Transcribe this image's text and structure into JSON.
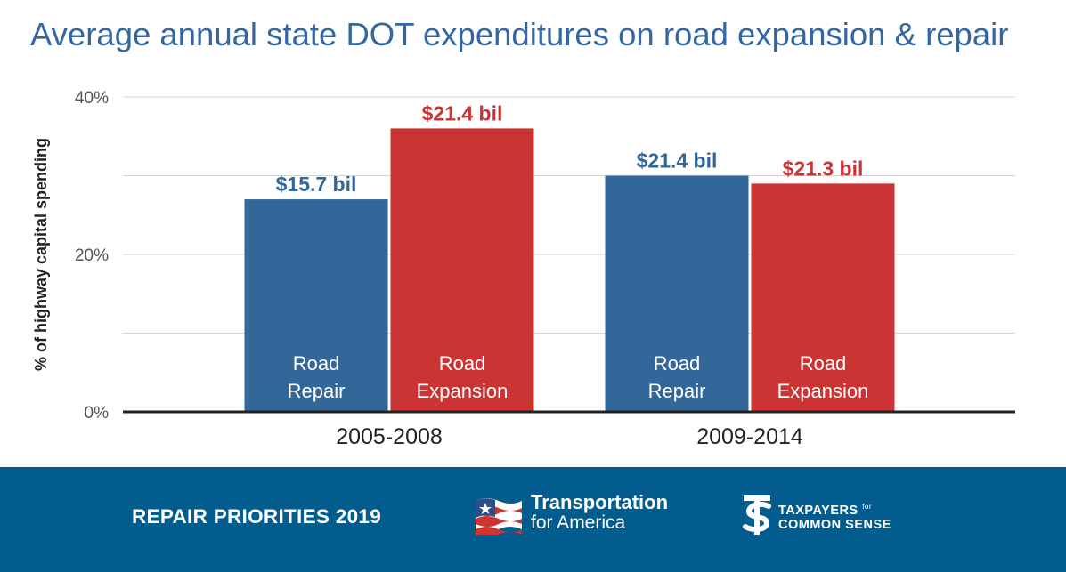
{
  "chart_data": {
    "type": "bar",
    "title": "Average annual state DOT expenditures on road expansion & repair",
    "xlabel": "",
    "ylabel": "% of highway capital spending",
    "ylim": [
      0,
      40
    ],
    "yticks": [
      0,
      20,
      40
    ],
    "ytick_labels": [
      "0%",
      "20%",
      "40%"
    ],
    "grid": true,
    "categories": [
      "2005-2008",
      "2009-2014"
    ],
    "series": [
      {
        "name": "Road Repair",
        "label_lines": [
          "Road",
          "Repair"
        ],
        "color": "#336699",
        "values": [
          27,
          30
        ],
        "data_labels": [
          "$15.7 bil",
          "$21.4 bil"
        ]
      },
      {
        "name": "Road Expansion",
        "label_lines": [
          "Road",
          "Expansion"
        ],
        "color": "#cc3333",
        "values": [
          36,
          29
        ],
        "data_labels": [
          "$21.4 bil",
          "$21.3 bil"
        ]
      }
    ],
    "colors": {
      "grid": "#d4d4d4",
      "axis": "#222222",
      "tick_text": "#555555",
      "category_text": "#222222",
      "bar_text": "#ffffff"
    }
  },
  "footer": {
    "title": "REPAIR PRIORITIES 2019",
    "background": "#035c8e",
    "t4a": {
      "line1": "Transportation",
      "line2": "for America"
    },
    "tcs": {
      "row1": "TAXPAYERS",
      "for": "for",
      "row2": "COMMON SENSE"
    }
  }
}
